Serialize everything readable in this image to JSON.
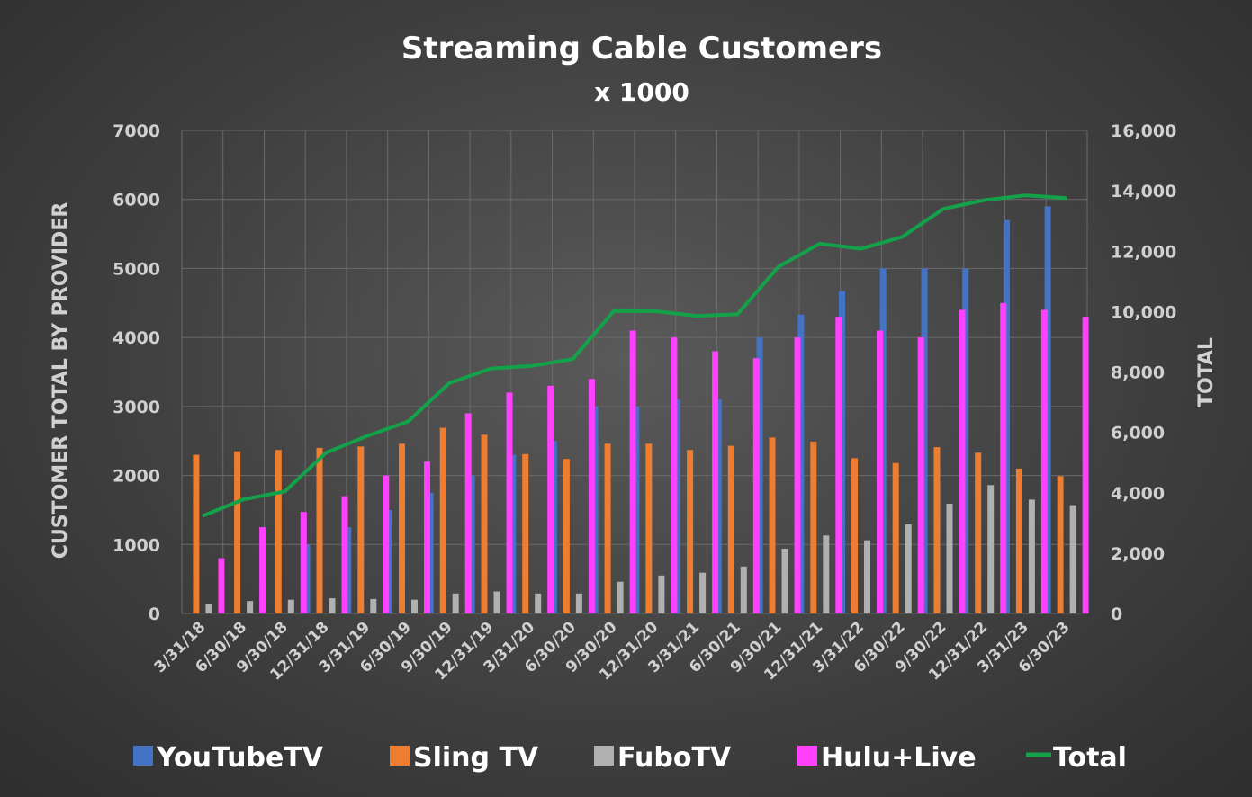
{
  "chart_data": {
    "type": "bar",
    "title": "Streaming Cable Customers",
    "subtitle": "x 1000",
    "ylabel": "CUSTOMER TOTAL BY PROVIDER",
    "y2label": "TOTAL",
    "ylim": [
      0,
      7000
    ],
    "y2lim": [
      0,
      16000
    ],
    "yticks": [
      "0",
      "1000",
      "2000",
      "3000",
      "4000",
      "5000",
      "6000",
      "7000"
    ],
    "y2ticks": [
      "0",
      "2,000",
      "4,000",
      "6,000",
      "8,000",
      "10,000",
      "12,000",
      "14,000",
      "16,000"
    ],
    "grid": true,
    "legend_position": "bottom",
    "categories": [
      "3/31/18",
      "6/30/18",
      "9/30/18",
      "12/31/18",
      "3/31/19",
      "6/30/19",
      "9/30/19",
      "12/31/19",
      "3/31/20",
      "6/30/20",
      "9/30/20",
      "12/31/20",
      "3/31/21",
      "6/30/21",
      "9/30/21",
      "12/31/21",
      "3/31/22",
      "6/30/22",
      "9/30/22",
      "12/31/22",
      "3/31/23",
      "6/30/23"
    ],
    "series": [
      {
        "name": "YouTubeTV",
        "type": "bar",
        "color": "#4472c4",
        "values": [
          0,
          0,
          0,
          1000,
          1250,
          1500,
          1750,
          2000,
          2300,
          2500,
          3000,
          3000,
          3100,
          3100,
          4000,
          4330,
          4670,
          5000,
          5000,
          5000,
          5700,
          5900
        ]
      },
      {
        "name": "Sling TV",
        "type": "bar",
        "color": "#ed7d31",
        "values": [
          2300,
          2350,
          2370,
          2400,
          2420,
          2460,
          2690,
          2590,
          2310,
          2240,
          2460,
          2460,
          2370,
          2430,
          2550,
          2490,
          2250,
          2180,
          2410,
          2330,
          2100,
          1990
        ]
      },
      {
        "name": "FuboTV",
        "type": "bar",
        "color": "#b0b0b0",
        "values": [
          130,
          180,
          200,
          220,
          210,
          200,
          290,
          320,
          290,
          290,
          460,
          550,
          590,
          680,
          940,
          1130,
          1060,
          1290,
          1590,
          1860,
          1650,
          1570
        ]
      },
      {
        "name": "Hulu+Live",
        "type": "bar",
        "color": "#ff40ff",
        "values": [
          800,
          1250,
          1470,
          1700,
          2000,
          2200,
          2900,
          3200,
          3300,
          3400,
          4100,
          4000,
          3800,
          3700,
          4000,
          4300,
          4100,
          4000,
          4400,
          4500,
          4400,
          4300
        ]
      },
      {
        "name": "Total",
        "type": "line",
        "axis": "right",
        "color": "#13a24a",
        "values": [
          3230,
          3780,
          4040,
          5320,
          5880,
          6360,
          7630,
          8110,
          8200,
          8430,
          10020,
          10010,
          9860,
          9910,
          11490,
          12250,
          12080,
          12470,
          13400,
          13690,
          13850,
          13760
        ]
      }
    ]
  }
}
